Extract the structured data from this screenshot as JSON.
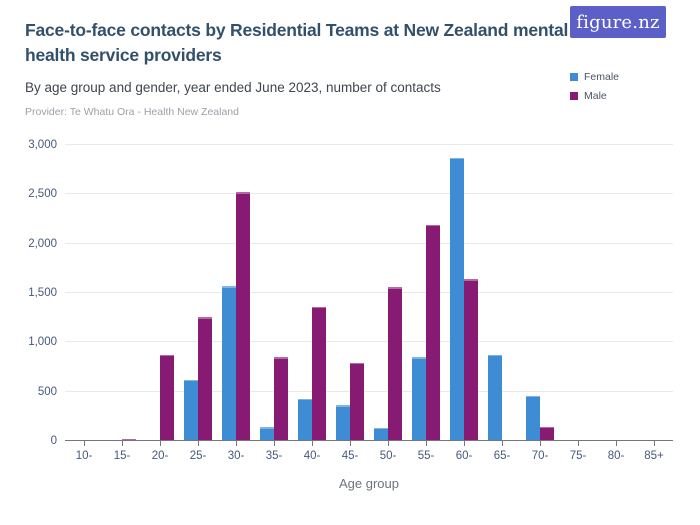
{
  "header": {
    "title": "Face-to-face contacts by Residential Teams at New Zealand mental health service providers",
    "subtitle": "By age group and gender, year ended June 2023, number of contacts",
    "provider": "Provider: Te Whatu Ora - Health New Zealand",
    "logo_text": "figure.nz"
  },
  "legend": {
    "items": [
      {
        "label": "Female",
        "color": "#3e8cd3"
      },
      {
        "label": "Male",
        "color": "#871b73"
      }
    ]
  },
  "chart_data": {
    "type": "bar",
    "title": "Face-to-face contacts by Residential Teams at New Zealand mental health service providers",
    "subtitle": "By age group and gender, year ended June 2023, number of contacts",
    "categories": [
      "10-",
      "15-",
      "20-",
      "25-",
      "30-",
      "35-",
      "40-",
      "45-",
      "50-",
      "55-",
      "60-",
      "65-",
      "70-",
      "75-",
      "80-",
      "85+"
    ],
    "series": [
      {
        "name": "Female",
        "color": "#3e8cd3",
        "values": [
          12,
          0,
          10,
          620,
          1570,
          140,
          430,
          365,
          135,
          850,
          2870,
          875,
          460,
          0,
          0,
          0
        ]
      },
      {
        "name": "Male",
        "color": "#871b73",
        "values": [
          0,
          25,
          875,
          1255,
          2520,
          850,
          1360,
          795,
          1560,
          2190,
          1640,
          0,
          145,
          0,
          0,
          0
        ]
      }
    ],
    "xlabel": "Age group",
    "ylabel": "",
    "ylim": [
      0,
      3000
    ],
    "ytick_step": 500,
    "ytick_labels": [
      "0",
      "500",
      "1,000",
      "1,500",
      "2,000",
      "2,500",
      "3,000"
    ],
    "grid": true,
    "legend_position": "top-right"
  },
  "colors": {
    "female": "#3e8cd3",
    "male": "#871b73",
    "logo_background": "#5b5fc7",
    "title_text": "#33506b",
    "axis_text": "#47597a",
    "gridline": "#e9e9ec",
    "axis_line": "#76767b"
  }
}
